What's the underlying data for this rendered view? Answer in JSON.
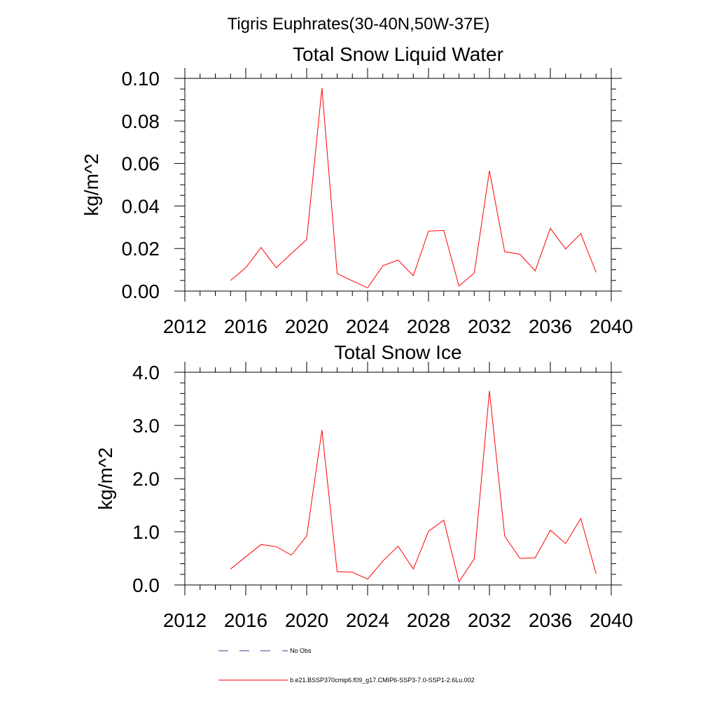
{
  "figure": {
    "title": "Tigris Euphrates(30-40N,50W-37E)"
  },
  "chart_data": [
    {
      "type": "line",
      "title": "Total Snow Liquid Water",
      "xlabel": "",
      "ylabel": "kg/m^2",
      "xlim": [
        2012,
        2040
      ],
      "ylim": [
        0,
        0.1
      ],
      "x_ticks": [
        2012,
        2016,
        2020,
        2024,
        2028,
        2032,
        2036,
        2040
      ],
      "y_ticks": [
        0,
        0.02,
        0.04,
        0.06,
        0.08,
        0.1
      ],
      "y_tick_labels": [
        "0.00",
        "0.02",
        "0.04",
        "0.06",
        "0.08",
        "0.10"
      ],
      "grid": false,
      "series": [
        {
          "name": "b.e21.BSSP370cmip6.f09_g17.CMIP6-SSP3-7.0-SSP1-2.6Lu.002",
          "color": "#ff0000",
          "x": [
            2015,
            2016,
            2017,
            2018,
            2019,
            2020,
            2021,
            2022,
            2023,
            2024,
            2025,
            2026,
            2027,
            2028,
            2029,
            2030,
            2031,
            2032,
            2033,
            2034,
            2035,
            2036,
            2037,
            2038,
            2039
          ],
          "values": [
            0.005,
            0.011,
            0.0205,
            0.011,
            0.0177,
            0.0242,
            0.0955,
            0.0082,
            0.0048,
            0.0015,
            0.0119,
            0.0146,
            0.0072,
            0.0282,
            0.0285,
            0.0024,
            0.0085,
            0.0565,
            0.0185,
            0.0173,
            0.0095,
            0.0295,
            0.0198,
            0.027,
            0.0088
          ]
        }
      ]
    },
    {
      "type": "line",
      "title": "Total Snow Ice",
      "xlabel": "",
      "ylabel": "kg/m^2",
      "xlim": [
        2012,
        2040
      ],
      "ylim": [
        0,
        4
      ],
      "x_ticks": [
        2012,
        2016,
        2020,
        2024,
        2028,
        2032,
        2036,
        2040
      ],
      "y_ticks": [
        0,
        1,
        2,
        3,
        4
      ],
      "y_tick_labels": [
        "0.0",
        "1.0",
        "2.0",
        "3.0",
        "4.0"
      ],
      "grid": false,
      "series": [
        {
          "name": "b.e21.BSSP370cmip6.f09_g17.CMIP6-SSP3-7.0-SSP1-2.6Lu.002",
          "color": "#ff0000",
          "x": [
            2015,
            2016,
            2017,
            2018,
            2019,
            2020,
            2021,
            2022,
            2023,
            2024,
            2025,
            2026,
            2027,
            2028,
            2029,
            2030,
            2031,
            2032,
            2033,
            2034,
            2035,
            2036,
            2037,
            2038,
            2039
          ],
          "values": [
            0.3,
            0.53,
            0.76,
            0.72,
            0.56,
            0.92,
            2.91,
            0.25,
            0.24,
            0.11,
            0.45,
            0.73,
            0.3,
            1.01,
            1.22,
            0.06,
            0.49,
            3.65,
            0.92,
            0.5,
            0.51,
            1.03,
            0.78,
            1.25,
            0.21
          ]
        }
      ]
    }
  ],
  "legend": {
    "position": "bottom",
    "entries": [
      {
        "label": "No Obs",
        "color": "#3b3b8f",
        "style": "dashed"
      },
      {
        "label": "b.e21.BSSP370cmip6.f09_g17.CMIP6-SSP3-7.0-SSP1-2.6Lu.002",
        "color": "#ff0000",
        "style": "solid"
      }
    ]
  }
}
